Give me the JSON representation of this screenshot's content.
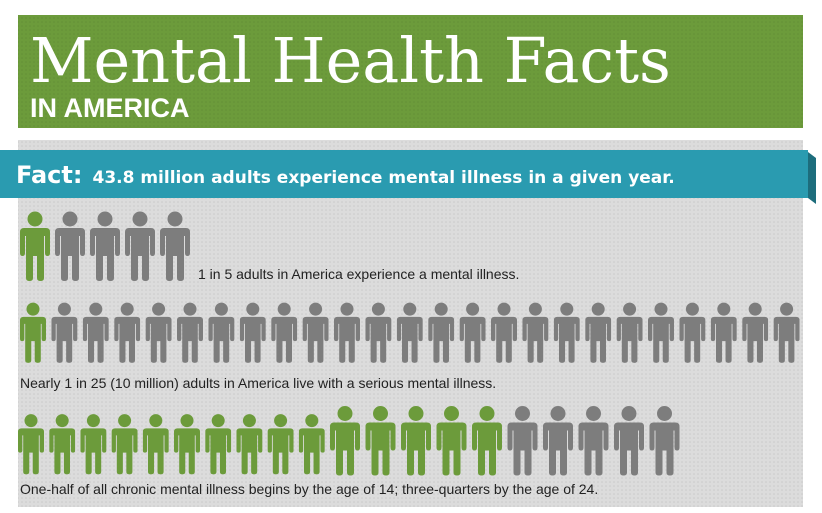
{
  "header": {
    "title": "Mental Health Facts",
    "subtitle": "IN AMERICA"
  },
  "fact": {
    "label": "Fact:",
    "text": "43.8 million adults experience mental illness in a given year."
  },
  "highlight_color": "#6c9b3b",
  "base_color": "#7d7d7d",
  "facts": [
    {
      "text": "1 in 5 adults in America experience a mental illness.",
      "icons": {
        "total": 5,
        "highlighted": 1
      }
    },
    {
      "text": "Nearly 1 in 25 (10 million) adults in America live with a serious mental illness.",
      "icons": {
        "total": 25,
        "highlighted": 1
      }
    },
    {
      "text": "One-half of all chronic mental illness begins by the age of 14; three-quarters by the age of 24.",
      "icons": {
        "total": 20,
        "highlighted": 15
      }
    }
  ]
}
